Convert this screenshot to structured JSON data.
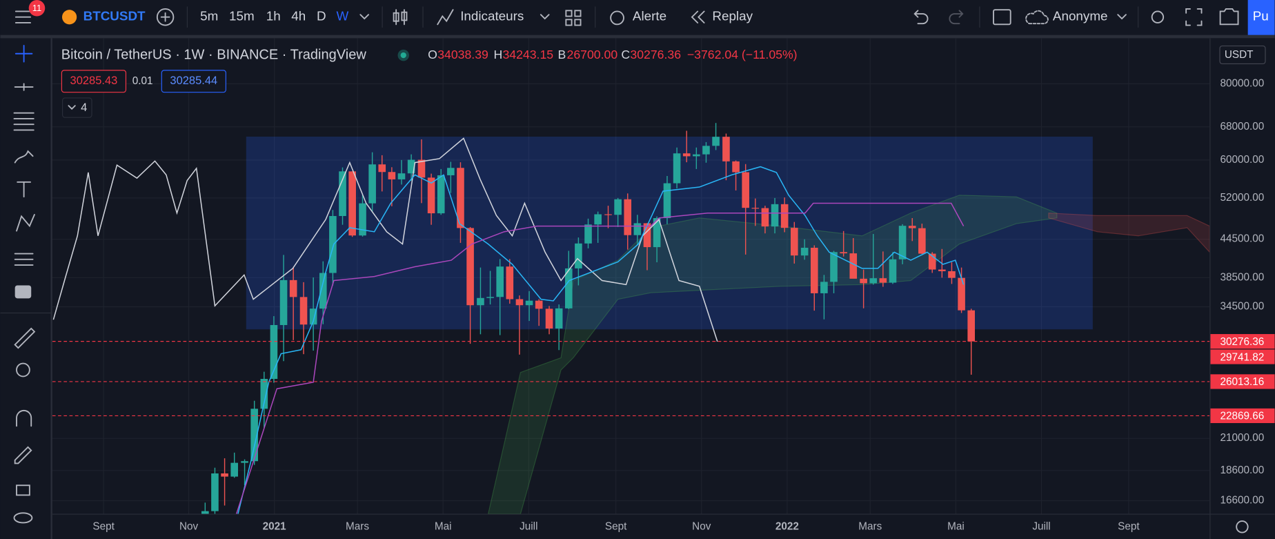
{
  "toolbar": {
    "badge": "11",
    "symbol": "BTCUSDT",
    "intervals": [
      "5m",
      "15m",
      "1h",
      "4h",
      "D",
      "W"
    ],
    "indicators": "Indicateurs",
    "alert": "Alerte",
    "replay": "Replay",
    "account": "Anonyme",
    "publish": "Pu"
  },
  "legend": {
    "title": "Bitcoin / TetherUS · 1W · BINANCE · TradingView",
    "o_label": "O",
    "open": "34038.39",
    "h_label": "H",
    "high": "34243.15",
    "l_label": "B",
    "low": "26700.00",
    "c_label": "C",
    "close": "30276.36",
    "change": "−3762.04 (−11.05%)",
    "sell": "30285.43",
    "spread": "0.01",
    "buy": "30285.44",
    "indicators_count": "4"
  },
  "currency": "USDT",
  "chart_data": {
    "type": "candlestick",
    "log_scale": true,
    "grid": true,
    "xlim": [
      2020.567,
      2022.824
    ],
    "xticks": [
      {
        "value": 2020.667,
        "label": "Sept"
      },
      {
        "value": 2020.833,
        "label": "Nov"
      },
      2021,
      {
        "value": 2021.162,
        "label": "Mars"
      },
      {
        "value": 2021.329,
        "label": "Mai"
      },
      {
        "value": 2021.496,
        "label": "Juill"
      },
      {
        "value": 2021.666,
        "label": "Sept"
      },
      {
        "value": 2021.833,
        "label": "Nov"
      },
      2022,
      {
        "value": 2022.162,
        "label": "Mars"
      },
      {
        "value": 2022.329,
        "label": "Mai"
      },
      {
        "value": 2022.496,
        "label": "Juill"
      },
      {
        "value": 2022.666,
        "label": "Sept"
      }
    ],
    "ylim": [
      15800,
      95000
    ],
    "yticks": [
      {
        "value": 80000,
        "label": "80000.00"
      },
      {
        "value": 68000,
        "label": "68000.00"
      },
      {
        "value": 60000,
        "label": "60000.00"
      },
      {
        "value": 52000,
        "label": "52000.00"
      },
      {
        "value": 44500,
        "label": "44500.00"
      },
      {
        "value": 38500,
        "label": "38500.00"
      },
      {
        "value": 34500,
        "label": "34500.00"
      },
      {
        "value": 21000,
        "label": "21000.00"
      },
      {
        "value": 18600,
        "label": "18600.00"
      },
      {
        "value": 16600,
        "label": "16600.00"
      }
    ],
    "candles": {
      "up_color": "#26a69a",
      "down_color": "#ef5350",
      "x": [
        2020.865,
        2020.884,
        2020.903,
        2020.922,
        2020.942,
        2020.961,
        2020.98,
        2020.999,
        2021.018,
        2021.037,
        2021.057,
        2021.076,
        2021.095,
        2021.114,
        2021.133,
        2021.152,
        2021.172,
        2021.191,
        2021.21,
        2021.229,
        2021.248,
        2021.267,
        2021.287,
        2021.306,
        2021.325,
        2021.344,
        2021.363,
        2021.382,
        2021.402,
        2021.421,
        2021.44,
        2021.459,
        2021.478,
        2021.497,
        2021.516,
        2021.536,
        2021.555,
        2021.574,
        2021.593,
        2021.612,
        2021.631,
        2021.651,
        2021.67,
        2021.689,
        2021.708,
        2021.727,
        2021.746,
        2021.766,
        2021.785,
        2021.804,
        2021.823,
        2021.842,
        2021.861,
        2021.881,
        2021.9,
        2021.919,
        2021.938,
        2021.957,
        2021.976,
        2021.995,
        2022.014,
        2022.034,
        2022.053,
        2022.072,
        2022.091,
        2022.11,
        2022.129,
        2022.149,
        2022.168,
        2022.187,
        2022.206,
        2022.225,
        2022.244,
        2022.263,
        2022.283,
        2022.302,
        2022.321,
        2022.34,
        2022.359
      ],
      "open": [
        15480,
        15960,
        18400,
        18180,
        19150,
        19270,
        23480,
        26280,
        32200,
        38150,
        35790,
        32260,
        34260,
        39190,
        48580,
        57490,
        45140,
        50960,
        59020,
        57350,
        55780,
        57060,
        60060,
        56150,
        49080,
        56650,
        58250,
        46430,
        34700,
        35660,
        35800,
        40150,
        35500,
        34700,
        35300,
        34240,
        31780,
        34290,
        39870,
        43800,
        47050,
        48900,
        48800,
        51750,
        45200,
        47280,
        43200,
        48200,
        54970,
        61530,
        60860,
        61300,
        63300,
        65500,
        59700,
        57300,
        50100,
        50050,
        46700,
        50800,
        46460,
        41860,
        43100,
        36300,
        37900,
        42400,
        42200,
        38350,
        37700,
        38420,
        37780,
        41260,
        46820,
        46400,
        42150,
        39700,
        39450,
        38470,
        34038.39
      ],
      "high": [
        16480,
        18800,
        19480,
        19900,
        19400,
        24200,
        27000,
        33300,
        41950,
        40100,
        37850,
        38530,
        40950,
        49700,
        58350,
        57500,
        52640,
        61780,
        61100,
        58400,
        60000,
        61300,
        64860,
        57000,
        58000,
        59600,
        59500,
        46600,
        40000,
        39500,
        41300,
        41300,
        36000,
        36600,
        35500,
        34600,
        34800,
        42600,
        44800,
        48100,
        49400,
        50500,
        52000,
        52900,
        48800,
        47300,
        48500,
        56500,
        62900,
        67000,
        62900,
        64200,
        69000,
        66300,
        59900,
        59100,
        51900,
        50500,
        52000,
        52100,
        47500,
        44500,
        43500,
        38900,
        42600,
        45900,
        44700,
        39700,
        45400,
        42500,
        42400,
        47100,
        48200,
        47200,
        42400,
        42900,
        40800,
        40000,
        34243.15
      ],
      "low": [
        14800,
        15800,
        16300,
        18100,
        17600,
        19000,
        21800,
        25900,
        28100,
        30420,
        28850,
        29240,
        32300,
        37400,
        47000,
        44900,
        44950,
        49300,
        53300,
        50400,
        54700,
        55500,
        51000,
        47000,
        48800,
        53000,
        43900,
        30000,
        31100,
        34800,
        31000,
        34900,
        28800,
        32700,
        32100,
        31100,
        29300,
        34200,
        37400,
        43000,
        43900,
        46400,
        46600,
        42800,
        43500,
        39600,
        40800,
        47100,
        53900,
        59500,
        58000,
        59400,
        62300,
        55600,
        53500,
        42000,
        46800,
        45500,
        45500,
        45700,
        40600,
        41200,
        34000,
        32900,
        36300,
        41700,
        39400,
        34300,
        37500,
        37200,
        37600,
        40500,
        44200,
        42100,
        39200,
        38500,
        37600,
        33700,
        26700
      ],
      "close": [
        15960,
        18400,
        18180,
        19150,
        19270,
        23480,
        26280,
        32200,
        38150,
        35790,
        32260,
        34260,
        39190,
        48580,
        57490,
        45140,
        50960,
        59020,
        57350,
        55780,
        57060,
        60060,
        56150,
        49080,
        56650,
        58250,
        46430,
        34700,
        35660,
        35800,
        40150,
        35500,
        34700,
        35300,
        34240,
        31780,
        34290,
        39870,
        43800,
        47050,
        48900,
        48800,
        51750,
        45200,
        47280,
        43200,
        48200,
        54970,
        61530,
        60860,
        61300,
        63300,
        65500,
        59700,
        57300,
        50100,
        50050,
        46700,
        50800,
        46460,
        41860,
        43100,
        36300,
        37900,
        42400,
        42200,
        38350,
        37700,
        38420,
        37780,
        41260,
        46820,
        46400,
        42150,
        39700,
        39450,
        38470,
        34038.39,
        30276.36
      ]
    },
    "range_box": {
      "x": [
        2020.945,
        2022.596
      ],
      "y": [
        31680,
        65540
      ],
      "color": "#2962ff"
    },
    "clouds": [
      {
        "color": "#4caf50",
        "x": [
          2021.417,
          2021.48,
          2021.559,
          2021.583,
          2021.67,
          2021.734,
          2021.829,
          2021.987,
          2022.146,
          2022.241,
          2022.336,
          2022.447,
          2022.526
        ],
        "upper": [
          15790,
          26930,
          28460,
          38080,
          41120,
          46490,
          48230,
          46770,
          45080,
          49120,
          52550,
          52230,
          49120
        ],
        "lower": [
          15790,
          15790,
          27180,
          28460,
          35490,
          36370,
          36710,
          37270,
          37500,
          38080,
          43710,
          47200,
          48230
        ]
      },
      {
        "color": "#ef5350",
        "x": [
          2022.51,
          2022.605,
          2022.685,
          2022.78,
          2022.824
        ],
        "upper": [
          49120,
          48670,
          48670,
          48670,
          46770
        ],
        "lower": [
          48230,
          45780,
          45080,
          46490,
          42390
        ]
      }
    ],
    "lines": [
      {
        "color": "#d1d4dc",
        "x": [
          2020.569,
          2020.593,
          2020.616,
          2020.637,
          2020.656,
          2020.693,
          2020.732,
          2020.767,
          2020.789,
          2020.81,
          2020.83,
          2020.848,
          2020.884,
          2020.941,
          2020.959,
          2021.036,
          2021.1,
          2021.147,
          2021.179,
          2021.219,
          2021.25,
          2021.274,
          2021.322,
          2021.369,
          2021.401,
          2021.433,
          2021.464,
          2021.488,
          2021.528,
          2021.559,
          2021.591,
          2021.639,
          2021.686,
          2021.718,
          2021.75,
          2021.789,
          2021.829,
          2021.864
        ],
        "values": [
          32860,
          38670,
          45080,
          57260,
          45080,
          58870,
          56050,
          59780,
          56740,
          49120,
          55540,
          58150,
          34620,
          38900,
          35490,
          39870,
          47930,
          59420,
          50970,
          45780,
          43710,
          59420,
          60330,
          65140,
          55870,
          48670,
          45080,
          50970,
          42390,
          38080,
          41370,
          38080,
          37500,
          45080,
          47930,
          38080,
          37270,
          30260
        ]
      },
      {
        "color": "#29b6f6",
        "x": [
          2020.929,
          2020.957,
          2020.989,
          2021.013,
          2021.052,
          2021.076,
          2021.1,
          2021.116,
          2021.147,
          2021.195,
          2021.227,
          2021.274,
          2021.306,
          2021.33,
          2021.361,
          2021.417,
          2021.464,
          2021.52,
          2021.544,
          2021.575,
          2021.67,
          2021.71,
          2021.734,
          2021.758,
          2021.829,
          2021.892,
          2021.948,
          2021.979,
          2022.003,
          2022.035,
          2022.059,
          2022.082,
          2022.146,
          2022.177,
          2022.209,
          2022.241,
          2022.273,
          2022.304,
          2022.328,
          2022.344
        ],
        "values": [
          15790,
          19700,
          25950,
          28900,
          29340,
          32660,
          39270,
          43710,
          46490,
          45780,
          50970,
          56740,
          55020,
          56740,
          47200,
          43710,
          40490,
          35490,
          35270,
          38080,
          40870,
          43710,
          48230,
          53360,
          54190,
          56740,
          58500,
          57260,
          52550,
          48670,
          45080,
          42390,
          39870,
          39870,
          42390,
          41120,
          42390,
          40490,
          41120,
          37500
        ]
      },
      {
        "color": "#ab47bc",
        "x": [
          2020.926,
          2021.005,
          2021.076,
          2021.092,
          2021.116,
          2021.195,
          2021.274,
          2021.345,
          2021.385,
          2021.448,
          2021.512,
          2021.734,
          2021.75,
          2021.845,
          2022.035,
          2022.051,
          2022.32,
          2022.344
        ],
        "values": [
          15790,
          25320,
          25950,
          32660,
          38080,
          38670,
          40120,
          41120,
          43710,
          45780,
          46770,
          46770,
          48230,
          49120,
          49120,
          50970,
          50970,
          46770
        ]
      }
    ],
    "price_lines": [
      {
        "value": 30276.36,
        "color": "#f23645"
      },
      {
        "value": 26013.16,
        "color": "#f23645"
      },
      {
        "value": 22869.66,
        "color": "#f23645"
      }
    ],
    "price_labels": [
      {
        "value": 29741.82,
        "color": "#f23645"
      }
    ]
  }
}
